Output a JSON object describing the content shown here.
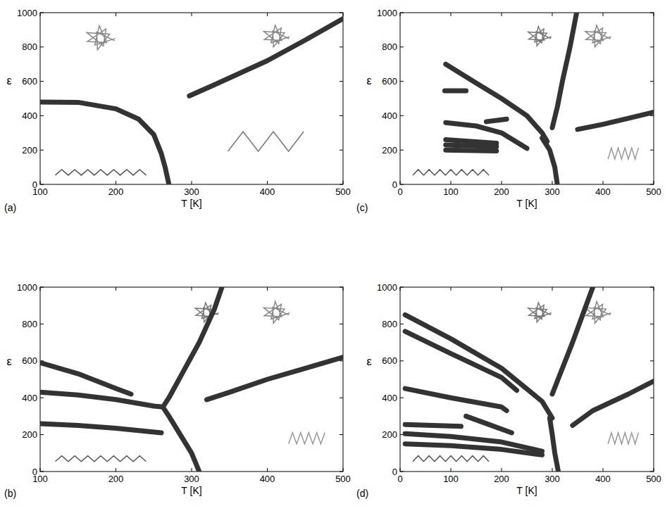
{
  "chart_data": [
    {
      "type": "line",
      "panel_label": "(a)",
      "x_label": "T [K]",
      "y_label": "ε",
      "grid": false,
      "xlim": [
        100,
        500
      ],
      "xticks": [
        100,
        200,
        300,
        400,
        500
      ],
      "ylim": [
        0,
        1000
      ],
      "yticks": [
        0,
        200,
        400,
        600,
        800,
        1000
      ],
      "series": [
        {
          "color": "#333333",
          "x": [
            100,
            150,
            200,
            230,
            250,
            260,
            265,
            270
          ],
          "values": [
            480,
            478,
            440,
            380,
            290,
            180,
            100,
            0
          ]
        },
        {
          "color": "#333333",
          "x": [
            297,
            330,
            400,
            450,
            500
          ],
          "values": [
            515,
            580,
            720,
            840,
            965
          ]
        }
      ]
    },
    {
      "type": "line",
      "panel_label": "(b)",
      "x_label": "T [K]",
      "y_label": "ε",
      "grid": false,
      "xlim": [
        100,
        500
      ],
      "xticks": [
        100,
        200,
        300,
        400,
        500
      ],
      "ylim": [
        0,
        1000
      ],
      "yticks": [
        0,
        200,
        400,
        600,
        800,
        1000
      ],
      "series": [
        {
          "color": "#333333",
          "x": [
            100,
            150,
            200,
            220
          ],
          "values": [
            590,
            530,
            450,
            420
          ]
        },
        {
          "color": "#333333",
          "x": [
            100,
            150,
            200,
            250,
            262
          ],
          "values": [
            430,
            415,
            390,
            355,
            350
          ]
        },
        {
          "color": "#333333",
          "x": [
            262,
            270,
            285,
            300,
            305,
            310
          ],
          "values": [
            350,
            300,
            200,
            100,
            50,
            0
          ]
        },
        {
          "color": "#333333",
          "x": [
            262,
            270,
            290,
            310,
            330,
            340
          ],
          "values": [
            350,
            400,
            550,
            700,
            880,
            1000
          ]
        },
        {
          "color": "#333333",
          "x": [
            100,
            150,
            200,
            260
          ],
          "values": [
            260,
            250,
            235,
            210
          ]
        },
        {
          "color": "#333333",
          "x": [
            320,
            350,
            400,
            450,
            500
          ],
          "values": [
            390,
            430,
            500,
            560,
            620
          ]
        }
      ]
    },
    {
      "type": "line",
      "panel_label": "(c)",
      "x_label": "T [K]",
      "y_label": "ε",
      "grid": false,
      "xlim": [
        0,
        500
      ],
      "xticks": [
        0,
        100,
        200,
        300,
        400,
        500
      ],
      "ylim": [
        0,
        1000
      ],
      "yticks": [
        0,
        200,
        400,
        600,
        800,
        1000
      ],
      "series": [
        {
          "color": "#333333",
          "x": [
            90,
            150,
            200,
            250,
            280,
            290
          ],
          "values": [
            700,
            590,
            500,
            400,
            300,
            250
          ]
        },
        {
          "color": "#333333",
          "x": [
            310,
            305,
            295,
            280
          ],
          "values": [
            0,
            100,
            200,
            270
          ]
        },
        {
          "color": "#333333",
          "x": [
            300,
            310,
            320,
            335,
            348
          ],
          "values": [
            330,
            450,
            600,
            800,
            1000
          ]
        },
        {
          "color": "#333333",
          "x": [
            88,
            130
          ],
          "values": [
            545,
            545
          ]
        },
        {
          "color": "#333333",
          "x": [
            90,
            150,
            200,
            250
          ],
          "values": [
            360,
            340,
            300,
            210
          ]
        },
        {
          "color": "#333333",
          "x": [
            170,
            210
          ],
          "values": [
            365,
            380
          ]
        },
        {
          "color": "#333333",
          "x": [
            90,
            190
          ],
          "values": [
            260,
            240
          ]
        },
        {
          "color": "#333333",
          "x": [
            90,
            190
          ],
          "values": [
            230,
            220
          ]
        },
        {
          "color": "#333333",
          "x": [
            90,
            190
          ],
          "values": [
            200,
            195
          ]
        },
        {
          "color": "#333333",
          "x": [
            350,
            400,
            450,
            500
          ],
          "values": [
            320,
            350,
            385,
            420
          ]
        }
      ]
    },
    {
      "type": "line",
      "panel_label": "(d)",
      "x_label": "T [K]",
      "y_label": "ε",
      "grid": false,
      "xlim": [
        0,
        500
      ],
      "xticks": [
        0,
        100,
        200,
        300,
        400,
        500
      ],
      "ylim": [
        0,
        1000
      ],
      "yticks": [
        0,
        200,
        400,
        600,
        800,
        1000
      ],
      "series": [
        {
          "color": "#333333",
          "x": [
            10,
            100,
            200,
            280,
            300
          ],
          "values": [
            850,
            720,
            560,
            380,
            290
          ]
        },
        {
          "color": "#333333",
          "x": [
            10,
            100,
            200,
            230
          ],
          "values": [
            760,
            640,
            510,
            440
          ]
        },
        {
          "color": "#333333",
          "x": [
            312,
            305,
            300,
            295
          ],
          "values": [
            0,
            100,
            200,
            290
          ]
        },
        {
          "color": "#333333",
          "x": [
            300,
            320,
            340,
            360,
            380
          ],
          "values": [
            420,
            560,
            700,
            850,
            1000
          ]
        },
        {
          "color": "#333333",
          "x": [
            10,
            100,
            200,
            210
          ],
          "values": [
            450,
            400,
            350,
            330
          ]
        },
        {
          "color": "#333333",
          "x": [
            130,
            170,
            220
          ],
          "values": [
            300,
            260,
            210
          ]
        },
        {
          "color": "#333333",
          "x": [
            10,
            120
          ],
          "values": [
            255,
            245
          ]
        },
        {
          "color": "#333333",
          "x": [
            10,
            100,
            200,
            280
          ],
          "values": [
            205,
            190,
            160,
            110
          ]
        },
        {
          "color": "#333333",
          "x": [
            10,
            100,
            200,
            280
          ],
          "values": [
            150,
            140,
            120,
            90
          ]
        },
        {
          "color": "#333333",
          "x": [
            340,
            380,
            450,
            500
          ],
          "values": [
            250,
            330,
            420,
            490
          ]
        }
      ]
    }
  ]
}
